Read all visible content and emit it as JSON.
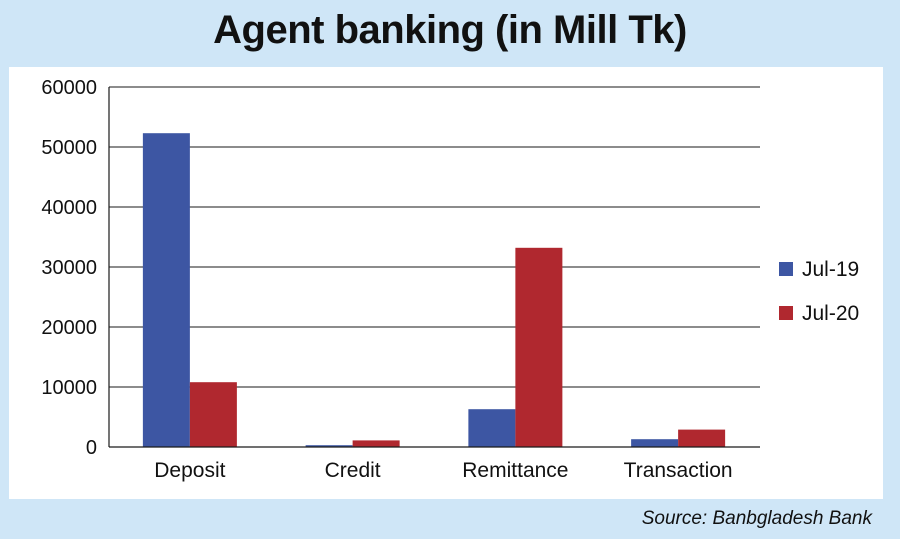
{
  "chart_data": {
    "type": "bar",
    "title": "Agent banking (in Mill Tk)",
    "categories": [
      "Deposit",
      "Credit",
      "Remittance",
      "Transaction"
    ],
    "series": [
      {
        "name": "Jul-19",
        "color": "#3d56a3",
        "values": [
          52300,
          300,
          6300,
          1300
        ]
      },
      {
        "name": "Jul-20",
        "color": "#b0282f",
        "values": [
          10800,
          1100,
          33200,
          2900
        ]
      }
    ],
    "ylim": [
      0,
      60000
    ],
    "yticks": [
      "0",
      "10000",
      "20000",
      "30000",
      "40000",
      "50000",
      "60000"
    ],
    "grid": true,
    "legend": "right"
  },
  "source": "Source: Banbgladesh Bank"
}
